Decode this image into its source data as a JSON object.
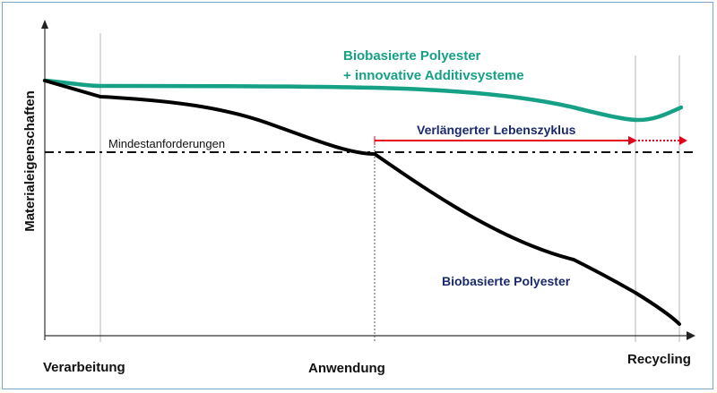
{
  "y_axis_label": "Materialeigenschaften",
  "x_axis_labels": [
    "Verarbeitung",
    "Anwendung",
    "Recycling"
  ],
  "threshold_label": "Mindestanforderungen",
  "extended_label": "Verlängerter Lebenszyklus",
  "series": [
    {
      "name_line1": "Biobasierte Polyester",
      "name_line2": "+ innovative Additivsysteme",
      "color": "#16a085"
    },
    {
      "name": "Biobasierte Polyester",
      "color": "#000000",
      "label_color": "#1a2a6c"
    }
  ],
  "colors": {
    "arrow": "#e3001b",
    "frame": "#7fa7c9",
    "gridline": "#b0b0b0",
    "label_navy": "#1a2a6c",
    "green": "#16a085"
  }
}
